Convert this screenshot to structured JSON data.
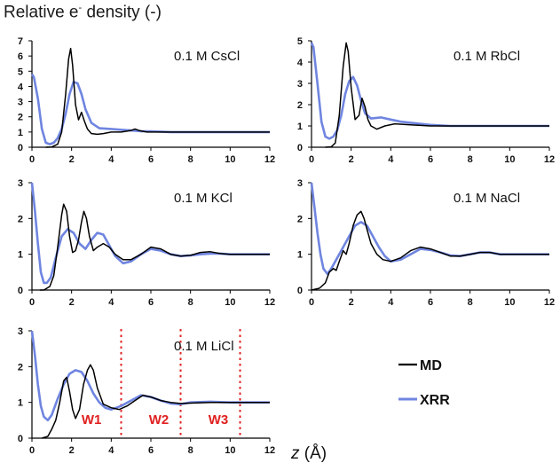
{
  "figure": {
    "title_main": "Relative e",
    "title_sup": "-",
    "title_tail": " density (-)",
    "xlabel_italic": "z",
    "xlabel_unit": " (Å)",
    "legend": [
      {
        "label": "MD",
        "color": "#000000"
      },
      {
        "label": "XRR",
        "color": "#6f85e0"
      }
    ]
  },
  "chart_data": [
    {
      "type": "line",
      "title": "0.1 M CsCl",
      "xlim": [
        0,
        12
      ],
      "ylim": [
        0,
        7
      ],
      "xticks": [
        0,
        2,
        4,
        6,
        8,
        10,
        12
      ],
      "yticks": [
        0,
        1,
        2,
        3,
        4,
        5,
        6,
        7
      ],
      "series": [
        {
          "name": "MD",
          "color": "#000000",
          "x": [
            0.7,
            1.0,
            1.3,
            1.5,
            1.7,
            1.85,
            1.95,
            2.05,
            2.2,
            2.35,
            2.5,
            2.65,
            2.8,
            3.0,
            3.3,
            3.6,
            4.0,
            4.5,
            5.0,
            5.2,
            5.4,
            5.8,
            6.5,
            7.5,
            9,
            10.5,
            12
          ],
          "y": [
            0,
            0.02,
            0.2,
            1.0,
            3.5,
            5.8,
            6.5,
            5.4,
            2.8,
            1.8,
            2.3,
            1.7,
            1.2,
            0.9,
            0.85,
            0.9,
            1.0,
            1.0,
            1.1,
            1.2,
            1.1,
            1.0,
            1.0,
            1.0,
            1.0,
            1.0,
            1.0
          ]
        },
        {
          "name": "XRR",
          "color": "#6f85e0",
          "x": [
            0,
            0.1,
            0.3,
            0.5,
            0.7,
            0.9,
            1.1,
            1.3,
            1.5,
            1.7,
            1.9,
            2.1,
            2.3,
            2.5,
            2.7,
            3.0,
            3.4,
            4.0,
            4.5,
            5.0,
            5.5,
            6.0,
            7,
            8,
            9,
            10,
            11,
            12
          ],
          "y": [
            4.8,
            4.6,
            3.2,
            1.2,
            0.3,
            0.2,
            0.3,
            0.6,
            1.2,
            2.2,
            3.5,
            4.3,
            4.2,
            3.5,
            2.5,
            1.6,
            1.25,
            1.2,
            1.15,
            1.1,
            1.05,
            1.05,
            1.0,
            1.0,
            1.0,
            1.0,
            1.0,
            1.0
          ]
        }
      ]
    },
    {
      "type": "line",
      "title": "0.1 M RbCl",
      "xlim": [
        0,
        12
      ],
      "ylim": [
        0,
        5
      ],
      "xticks": [
        0,
        2,
        4,
        6,
        8,
        10,
        12
      ],
      "yticks": [
        0,
        1,
        2,
        3,
        4,
        5
      ],
      "series": [
        {
          "name": "MD",
          "color": "#000000",
          "x": [
            0.7,
            1.0,
            1.2,
            1.4,
            1.6,
            1.75,
            1.85,
            2.0,
            2.2,
            2.4,
            2.55,
            2.7,
            2.85,
            3.0,
            3.3,
            3.7,
            4.2,
            5.0,
            6.0,
            7.0,
            8.5,
            10,
            12
          ],
          "y": [
            0,
            0.02,
            0.2,
            1.5,
            3.8,
            4.9,
            4.5,
            2.8,
            1.3,
            1.5,
            2.3,
            1.9,
            1.3,
            1.0,
            0.85,
            1.0,
            1.1,
            1.05,
            1.0,
            1.0,
            1.0,
            1.0,
            1.0
          ]
        },
        {
          "name": "XRR",
          "color": "#6f85e0",
          "x": [
            0,
            0.1,
            0.3,
            0.5,
            0.7,
            0.9,
            1.1,
            1.3,
            1.5,
            1.7,
            1.9,
            2.1,
            2.3,
            2.5,
            2.7,
            3.0,
            3.5,
            4.0,
            4.5,
            5.0,
            6.0,
            7,
            8,
            9,
            10,
            11,
            12
          ],
          "y": [
            4.9,
            4.7,
            3.0,
            1.2,
            0.5,
            0.4,
            0.5,
            0.8,
            1.5,
            2.5,
            3.1,
            3.3,
            2.9,
            2.2,
            1.6,
            1.35,
            1.4,
            1.3,
            1.2,
            1.15,
            1.05,
            1.0,
            1.0,
            1.0,
            1.0,
            1.0,
            1.0
          ]
        }
      ]
    },
    {
      "type": "line",
      "title": "0.1 M KCl",
      "xlim": [
        0,
        12
      ],
      "ylim": [
        0,
        3
      ],
      "xticks": [
        0,
        2,
        4,
        6,
        8,
        10,
        12
      ],
      "yticks": [
        0,
        1,
        2,
        3
      ],
      "series": [
        {
          "name": "MD",
          "color": "#000000",
          "x": [
            0.4,
            0.6,
            0.9,
            1.1,
            1.3,
            1.5,
            1.6,
            1.75,
            1.9,
            2.05,
            2.2,
            2.35,
            2.5,
            2.62,
            2.75,
            2.9,
            3.1,
            3.3,
            3.6,
            3.9,
            4.2,
            4.6,
            5.0,
            5.5,
            6.0,
            6.5,
            7.0,
            7.5,
            8.0,
            8.5,
            9.0,
            9.5,
            10,
            11,
            12
          ],
          "y": [
            0,
            0,
            0.1,
            0.4,
            1.2,
            2.1,
            2.4,
            2.2,
            1.5,
            1.05,
            1.1,
            1.4,
            1.9,
            2.2,
            2.0,
            1.5,
            1.1,
            1.2,
            1.3,
            1.2,
            1.0,
            0.85,
            0.85,
            1.0,
            1.2,
            1.15,
            1.0,
            0.95,
            0.97,
            1.05,
            1.07,
            1.02,
            1.0,
            1.0,
            1.0
          ]
        },
        {
          "name": "XRR",
          "color": "#6f85e0",
          "x": [
            0,
            0.15,
            0.3,
            0.45,
            0.6,
            0.75,
            0.95,
            1.2,
            1.5,
            1.8,
            2.1,
            2.4,
            2.7,
            3.0,
            3.3,
            3.6,
            3.9,
            4.2,
            4.6,
            5.0,
            5.5,
            6.0,
            6.5,
            7.0,
            7.5,
            8.0,
            8.5,
            9.0,
            9.5,
            10,
            10.5,
            11,
            12
          ],
          "y": [
            3.0,
            2.2,
            1.3,
            0.5,
            0.2,
            0.2,
            0.35,
            0.9,
            1.5,
            1.7,
            1.6,
            1.3,
            1.15,
            1.4,
            1.6,
            1.55,
            1.25,
            0.95,
            0.75,
            0.8,
            1.0,
            1.15,
            1.1,
            1.0,
            0.95,
            0.97,
            1.0,
            1.02,
            1.02,
            1.0,
            1.0,
            1.0,
            1.0
          ]
        }
      ]
    },
    {
      "type": "line",
      "title": "0.1 M NaCl",
      "xlim": [
        0,
        12
      ],
      "ylim": [
        0,
        3
      ],
      "xticks": [
        0,
        2,
        4,
        6,
        8,
        10,
        12
      ],
      "yticks": [
        0,
        1,
        2,
        3
      ],
      "series": [
        {
          "name": "MD",
          "color": "#000000",
          "x": [
            0,
            0.4,
            0.7,
            0.9,
            1.1,
            1.25,
            1.4,
            1.6,
            1.75,
            1.9,
            2.1,
            2.3,
            2.5,
            2.65,
            2.8,
            3.0,
            3.3,
            3.6,
            4.0,
            4.5,
            5.0,
            5.5,
            6.0,
            6.5,
            7.0,
            7.5,
            8.0,
            8.5,
            9.0,
            9.5,
            10,
            11,
            12
          ],
          "y": [
            0,
            0.05,
            0.2,
            0.5,
            0.6,
            0.55,
            0.8,
            1.1,
            1.0,
            1.3,
            1.8,
            2.1,
            2.2,
            2.0,
            1.7,
            1.3,
            1.0,
            0.85,
            0.8,
            0.9,
            1.1,
            1.2,
            1.15,
            1.05,
            0.95,
            0.95,
            1.0,
            1.05,
            1.05,
            1.0,
            1.0,
            1.0,
            1.0
          ]
        },
        {
          "name": "XRR",
          "color": "#6f85e0",
          "x": [
            0,
            0.15,
            0.3,
            0.45,
            0.6,
            0.8,
            1.0,
            1.3,
            1.6,
            1.9,
            2.2,
            2.5,
            2.8,
            3.1,
            3.4,
            3.7,
            4.0,
            4.5,
            5.0,
            5.5,
            6.0,
            6.5,
            7.0,
            7.5,
            8.0,
            8.5,
            9.0,
            9.5,
            10,
            11,
            12
          ],
          "y": [
            3.0,
            2.3,
            1.6,
            1.0,
            0.6,
            0.45,
            0.6,
            0.9,
            1.2,
            1.5,
            1.8,
            1.9,
            1.8,
            1.5,
            1.2,
            0.95,
            0.8,
            0.85,
            1.0,
            1.15,
            1.12,
            1.05,
            0.97,
            0.95,
            1.0,
            1.05,
            1.05,
            1.0,
            1.0,
            1.0,
            1.0
          ]
        }
      ]
    },
    {
      "type": "line",
      "title": "0.1 M LiCl",
      "xlim": [
        0,
        12
      ],
      "ylim": [
        0,
        3
      ],
      "xticks": [
        0,
        2,
        4,
        6,
        8,
        10,
        12
      ],
      "yticks": [
        0,
        1,
        2,
        3
      ],
      "series": [
        {
          "name": "MD",
          "color": "#000000",
          "x": [
            0.5,
            0.8,
            1.0,
            1.2,
            1.4,
            1.6,
            1.75,
            1.9,
            2.05,
            2.2,
            2.4,
            2.6,
            2.8,
            2.95,
            3.1,
            3.3,
            3.6,
            4.0,
            4.4,
            4.8,
            5.2,
            5.6,
            6.0,
            6.5,
            7.0,
            7.5,
            8.0,
            9.0,
            10,
            11,
            12
          ],
          "y": [
            0,
            0.05,
            0.25,
            0.5,
            1.0,
            1.6,
            1.7,
            1.3,
            0.8,
            0.55,
            0.8,
            1.5,
            1.9,
            2.05,
            1.9,
            1.4,
            0.95,
            0.85,
            0.8,
            0.9,
            1.05,
            1.2,
            1.15,
            1.05,
            1.0,
            0.97,
            0.98,
            1.0,
            1.0,
            1.0,
            1.0
          ]
        },
        {
          "name": "XRR",
          "color": "#6f85e0",
          "x": [
            0,
            0.15,
            0.3,
            0.45,
            0.6,
            0.8,
            1.0,
            1.3,
            1.6,
            1.9,
            2.2,
            2.5,
            2.8,
            3.1,
            3.4,
            3.7,
            4.0,
            4.5,
            5.0,
            5.5,
            6.0,
            6.5,
            7.0,
            7.5,
            8.0,
            9.0,
            10,
            11,
            12
          ],
          "y": [
            3.0,
            2.3,
            1.5,
            0.9,
            0.6,
            0.5,
            0.65,
            1.1,
            1.5,
            1.8,
            1.9,
            1.85,
            1.6,
            1.25,
            1.0,
            0.85,
            0.8,
            0.9,
            1.05,
            1.2,
            1.15,
            1.05,
            0.97,
            0.95,
            1.0,
            1.02,
            1.0,
            1.0,
            1.0
          ]
        }
      ],
      "annotations": [
        {
          "type": "vline",
          "x": 4.5,
          "color": "#e02020"
        },
        {
          "type": "vline",
          "x": 7.5,
          "color": "#e02020"
        },
        {
          "type": "vline",
          "x": 10.5,
          "color": "#e02020"
        },
        {
          "type": "text",
          "text": "W1",
          "x": 2.5,
          "color": "#e02020"
        },
        {
          "type": "text",
          "text": "W2",
          "x": 5.9,
          "color": "#e02020"
        },
        {
          "type": "text",
          "text": "W3",
          "x": 8.9,
          "color": "#e02020"
        }
      ]
    }
  ]
}
